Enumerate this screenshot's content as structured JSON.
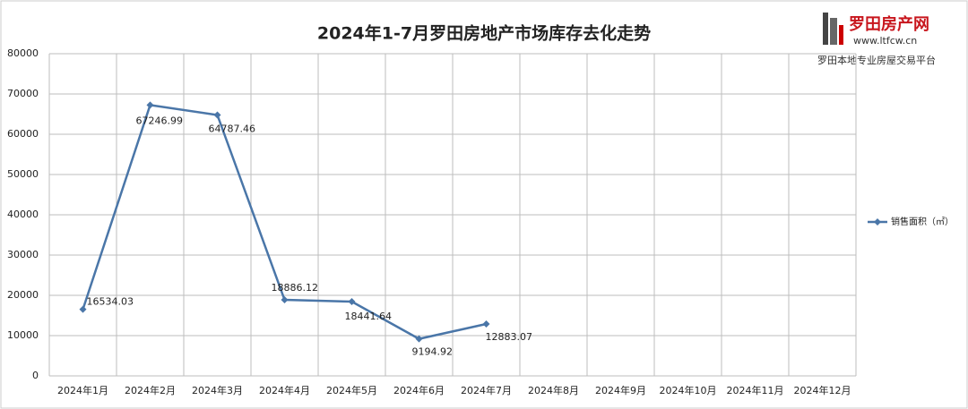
{
  "chart_data": {
    "type": "line",
    "title": "2024年1-7月罗田房地产市场库存去化走势",
    "annotations": [
      "罗田房产网",
      "www.ltfcw.cn",
      "罗田本地专业房屋交易平台"
    ],
    "categories": [
      "2024年1月",
      "2024年2月",
      "2024年3月",
      "2024年4月",
      "2024年5月",
      "2024年6月",
      "2024年7月",
      "2024年8月",
      "2024年9月",
      "2024年10月",
      "2024年11月",
      "2024年12月"
    ],
    "series": [
      {
        "name": "销售面积（㎡）",
        "color": "#4a76a8",
        "values": [
          16534.03,
          67246.99,
          64787.46,
          18886.12,
          18441.64,
          9194.92,
          12883.07,
          null,
          null,
          null,
          null,
          null
        ]
      }
    ],
    "ylim": [
      0,
      80000
    ],
    "yticks": [
      0,
      10000,
      20000,
      30000,
      40000,
      50000,
      60000,
      70000,
      80000
    ],
    "grid": true,
    "legend": "right"
  }
}
